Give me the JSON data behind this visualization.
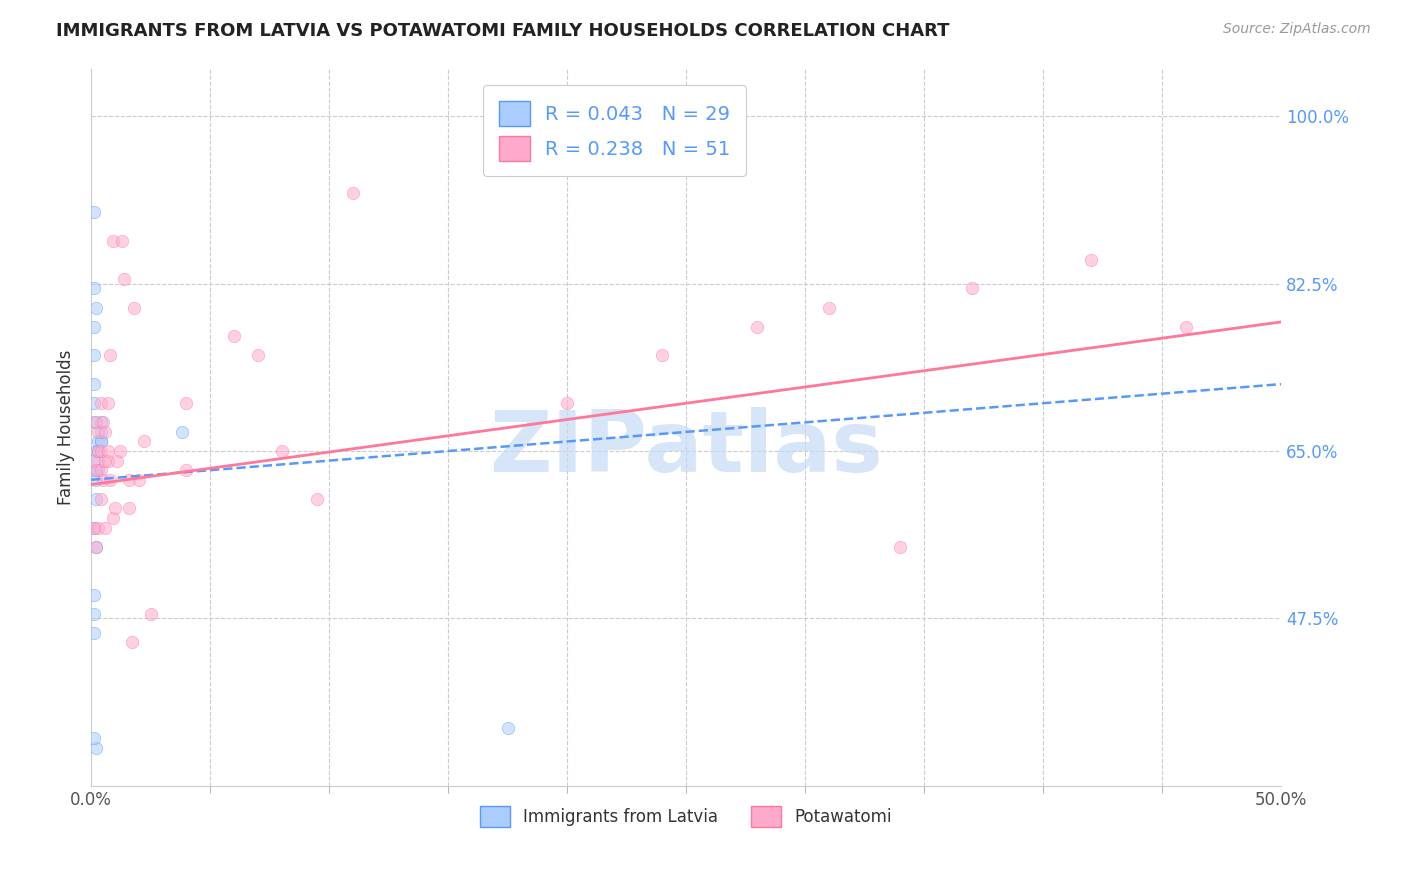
{
  "title": "IMMIGRANTS FROM LATVIA VS POTAWATOMI FAMILY HOUSEHOLDS CORRELATION CHART",
  "source": "Source: ZipAtlas.com",
  "ylabel": "Family Households",
  "yticks": [
    47.5,
    65.0,
    82.5,
    100.0
  ],
  "ytick_labels": [
    "47.5%",
    "65.0%",
    "82.5%",
    "100.0%"
  ],
  "xmin": 0.0,
  "xmax": 0.5,
  "ymin": 30.0,
  "ymax": 105.0,
  "legend_entry1": "R = 0.043   N = 29",
  "legend_entry2": "R = 0.238   N = 51",
  "legend_label1": "Immigrants from Latvia",
  "legend_label2": "Potawatomi",
  "blue_scatter_x": [
    0.002,
    0.001,
    0.001,
    0.001,
    0.002,
    0.001,
    0.002,
    0.002,
    0.003,
    0.002,
    0.003,
    0.002,
    0.003,
    0.003,
    0.004,
    0.004,
    0.004,
    0.004,
    0.001,
    0.001,
    0.001,
    0.001,
    0.001,
    0.002,
    0.001,
    0.038,
    0.001,
    0.175,
    0.001
  ],
  "blue_scatter_y": [
    34,
    35,
    48,
    50,
    55,
    57,
    60,
    62,
    63,
    63,
    64,
    65,
    65,
    66,
    66,
    66,
    67,
    68,
    68,
    70,
    72,
    75,
    78,
    80,
    82,
    67,
    46,
    36,
    90
  ],
  "pink_scatter_x": [
    0.001,
    0.001,
    0.002,
    0.002,
    0.002,
    0.003,
    0.003,
    0.003,
    0.004,
    0.004,
    0.004,
    0.004,
    0.005,
    0.005,
    0.006,
    0.006,
    0.006,
    0.007,
    0.007,
    0.007,
    0.008,
    0.008,
    0.009,
    0.009,
    0.01,
    0.011,
    0.012,
    0.013,
    0.014,
    0.016,
    0.016,
    0.017,
    0.018,
    0.02,
    0.022,
    0.025,
    0.04,
    0.04,
    0.06,
    0.07,
    0.08,
    0.095,
    0.11,
    0.2,
    0.24,
    0.28,
    0.31,
    0.34,
    0.37,
    0.42,
    0.46
  ],
  "pink_scatter_y": [
    57,
    64,
    55,
    63,
    68,
    57,
    65,
    67,
    60,
    63,
    65,
    70,
    62,
    68,
    57,
    64,
    67,
    64,
    65,
    70,
    62,
    75,
    58,
    87,
    59,
    64,
    65,
    87,
    83,
    59,
    62,
    45,
    80,
    62,
    66,
    48,
    63,
    70,
    77,
    75,
    65,
    60,
    92,
    70,
    75,
    78,
    80,
    55,
    82,
    85,
    78
  ],
  "blue_line_x": [
    0.0,
    0.5
  ],
  "blue_line_y": [
    62.0,
    72.0
  ],
  "pink_line_x": [
    0.0,
    0.5
  ],
  "pink_line_y": [
    61.5,
    78.5
  ],
  "xtick_minor_positions": [
    0.05,
    0.1,
    0.15,
    0.2,
    0.25,
    0.3,
    0.35,
    0.4,
    0.45
  ],
  "scatter_alpha": 0.55,
  "scatter_size": 80,
  "blue_color": "#aaccff",
  "pink_color": "#ffaacc",
  "blue_line_color": "#5599ff",
  "pink_line_color": "#ff7799",
  "watermark": "ZIPatlas",
  "watermark_color": "#c5daf5",
  "background_color": "#ffffff",
  "grid_color": "#cccccc"
}
